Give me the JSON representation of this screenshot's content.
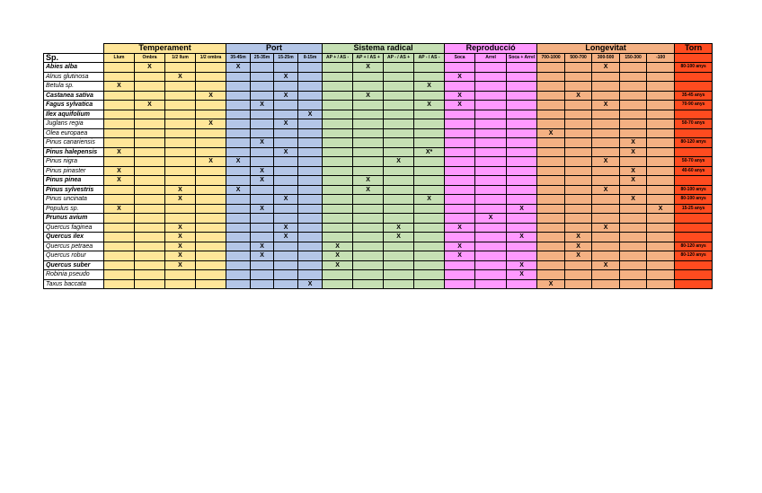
{
  "table": {
    "sp_header": "Sp.",
    "groups": [
      {
        "label": "Temperament",
        "color": "#ffe699",
        "columns": [
          "Llum",
          "Ombra",
          "1/2 llum",
          "1/2 ombra"
        ]
      },
      {
        "label": "Port",
        "color": "#b4c6e7",
        "columns": [
          "35-45m",
          "25-35m",
          "15-25m",
          "8-15m"
        ]
      },
      {
        "label": "Sistema radical",
        "color": "#c6e0b4",
        "columns": [
          "AP + / AS -",
          "AP + / AS +",
          "AP - / AS +",
          "AP - / AS -"
        ]
      },
      {
        "label": "Reproducció",
        "color": "#ff99ff",
        "columns": [
          "Soca",
          "Arrel",
          "Soca + Arrel"
        ]
      },
      {
        "label": "Longevitat",
        "color": "#f4b183",
        "columns": [
          "700-1000",
          "500-700",
          "300-500",
          "150-300",
          "-100"
        ]
      }
    ],
    "torn_header": "Torn",
    "torn_color": "#ff4b1f",
    "rows": [
      {
        "species": "Abies alba",
        "bold": true,
        "cells": [
          null,
          "X",
          null,
          null,
          "X",
          null,
          null,
          null,
          null,
          "X",
          null,
          null,
          null,
          null,
          null,
          null,
          null,
          "X",
          null,
          null
        ],
        "torn": "80-100 anys"
      },
      {
        "species": "Alnus glutinosa",
        "bold": false,
        "cells": [
          null,
          null,
          "X",
          null,
          null,
          null,
          "X",
          null,
          null,
          null,
          null,
          null,
          "X",
          null,
          null,
          null,
          null,
          null,
          null,
          null
        ],
        "torn": null
      },
      {
        "species": "Betula sp.",
        "bold": false,
        "cells": [
          "X",
          null,
          null,
          null,
          null,
          null,
          null,
          null,
          null,
          null,
          null,
          "X",
          null,
          null,
          null,
          null,
          null,
          null,
          null,
          null
        ],
        "torn": null
      },
      {
        "species": "Castanea sativa",
        "bold": true,
        "cells": [
          null,
          null,
          null,
          "X",
          null,
          null,
          "X",
          null,
          null,
          "X",
          null,
          null,
          "X",
          null,
          null,
          null,
          "X",
          null,
          null,
          null
        ],
        "torn": "35-45 anys"
      },
      {
        "species": "Fagus sylvatica",
        "bold": true,
        "cells": [
          null,
          "X",
          null,
          null,
          null,
          "X",
          null,
          null,
          null,
          null,
          null,
          "X",
          "X",
          null,
          null,
          null,
          null,
          "X",
          null,
          null
        ],
        "torn": "70-90 anys"
      },
      {
        "species": "Ilex aquifolium",
        "bold": true,
        "cells": [
          null,
          null,
          null,
          null,
          null,
          null,
          null,
          "X",
          null,
          null,
          null,
          null,
          null,
          null,
          null,
          null,
          null,
          null,
          null,
          null
        ],
        "torn": null
      },
      {
        "species": "Juglans regia",
        "bold": false,
        "cells": [
          null,
          null,
          null,
          "X",
          null,
          null,
          "X",
          null,
          null,
          null,
          null,
          null,
          null,
          null,
          null,
          null,
          null,
          null,
          null,
          null
        ],
        "torn": "50-70 anys"
      },
      {
        "species": "Olea europaea",
        "bold": false,
        "cells": [
          null,
          null,
          null,
          null,
          null,
          null,
          null,
          null,
          null,
          null,
          null,
          null,
          null,
          null,
          null,
          "X",
          null,
          null,
          null,
          null
        ],
        "torn": null
      },
      {
        "species": "Pinus canariensis",
        "bold": false,
        "cells": [
          null,
          null,
          null,
          null,
          null,
          "X",
          null,
          null,
          null,
          null,
          null,
          null,
          null,
          null,
          null,
          null,
          null,
          null,
          "X",
          null
        ],
        "torn": "80-120 anys"
      },
      {
        "species": "Pinus halepensis",
        "bold": true,
        "cells": [
          "X",
          null,
          null,
          null,
          null,
          null,
          "X",
          null,
          null,
          null,
          null,
          "X*",
          null,
          null,
          null,
          null,
          null,
          null,
          "X",
          null
        ],
        "torn": null
      },
      {
        "species": "Pinus nigra",
        "bold": false,
        "cells": [
          null,
          null,
          null,
          "X",
          "X",
          null,
          null,
          null,
          null,
          null,
          "X",
          null,
          null,
          null,
          null,
          null,
          null,
          "X",
          null,
          null
        ],
        "torn": "50-70 anys"
      },
      {
        "species": "Pinus pinaster",
        "bold": false,
        "cells": [
          "X",
          null,
          null,
          null,
          null,
          "X",
          null,
          null,
          null,
          null,
          null,
          null,
          null,
          null,
          null,
          null,
          null,
          null,
          "X",
          null
        ],
        "torn": "40-60 anys"
      },
      {
        "species": "Pinus pinea",
        "bold": true,
        "cells": [
          "X",
          null,
          null,
          null,
          null,
          "X",
          null,
          null,
          null,
          "X",
          null,
          null,
          null,
          null,
          null,
          null,
          null,
          null,
          "X",
          null
        ],
        "torn": null
      },
      {
        "species": "Pinus sylvestris",
        "bold": true,
        "cells": [
          null,
          null,
          "X",
          null,
          "X",
          null,
          null,
          null,
          null,
          "X",
          null,
          null,
          null,
          null,
          null,
          null,
          null,
          "X",
          null,
          null
        ],
        "torn": "80-100 anys"
      },
      {
        "species": "Pinus uncinata",
        "bold": false,
        "cells": [
          null,
          null,
          "X",
          null,
          null,
          null,
          "X",
          null,
          null,
          null,
          null,
          "X",
          null,
          null,
          null,
          null,
          null,
          null,
          "X",
          null
        ],
        "torn": "80-100 anys"
      },
      {
        "species": "Populus sp.",
        "bold": false,
        "cells": [
          "X",
          null,
          null,
          null,
          null,
          "X",
          null,
          null,
          null,
          null,
          null,
          null,
          null,
          null,
          "X",
          null,
          null,
          null,
          null,
          "X"
        ],
        "torn": "15-25 anys"
      },
      {
        "species": "Prunus avium",
        "bold": true,
        "cells": [
          null,
          null,
          null,
          null,
          null,
          null,
          null,
          null,
          null,
          null,
          null,
          null,
          null,
          "X",
          null,
          null,
          null,
          null,
          null,
          null
        ],
        "torn": null
      },
      {
        "species": "Quercus faginea",
        "bold": false,
        "cells": [
          null,
          null,
          "X",
          null,
          null,
          null,
          "X",
          null,
          null,
          null,
          "X",
          null,
          "X",
          null,
          null,
          null,
          null,
          "X",
          null,
          null
        ],
        "torn": null
      },
      {
        "species": "Quercus ilex",
        "bold": true,
        "cells": [
          null,
          null,
          "X",
          null,
          null,
          null,
          "X",
          null,
          null,
          null,
          "X",
          null,
          null,
          null,
          "X",
          null,
          "X",
          null,
          null,
          null
        ],
        "torn": null
      },
      {
        "species": "Quercus petraea",
        "bold": false,
        "cells": [
          null,
          null,
          "X",
          null,
          null,
          "X",
          null,
          null,
          "X",
          null,
          null,
          null,
          "X",
          null,
          null,
          null,
          "X",
          null,
          null,
          null
        ],
        "torn": "80-120 anys"
      },
      {
        "species": "Quercus robur",
        "bold": false,
        "cells": [
          null,
          null,
          "X",
          null,
          null,
          "X",
          null,
          null,
          "X",
          null,
          null,
          null,
          "X",
          null,
          null,
          null,
          "X",
          null,
          null,
          null
        ],
        "torn": "80-120 anys"
      },
      {
        "species": "Quercus suber",
        "bold": true,
        "cells": [
          null,
          null,
          "X",
          null,
          null,
          null,
          null,
          null,
          "X",
          null,
          null,
          null,
          null,
          null,
          "X",
          null,
          null,
          "X",
          null,
          null
        ],
        "torn": null
      },
      {
        "species": "Robinia pseudo",
        "bold": false,
        "cells": [
          null,
          null,
          null,
          null,
          null,
          null,
          null,
          null,
          null,
          null,
          null,
          null,
          null,
          null,
          "X",
          null,
          null,
          null,
          null,
          null
        ],
        "torn": null
      },
      {
        "species": "Taxus baccata",
        "bold": false,
        "cells": [
          null,
          null,
          null,
          null,
          null,
          null,
          null,
          "X",
          null,
          null,
          null,
          null,
          null,
          null,
          null,
          "X",
          null,
          null,
          null,
          null
        ],
        "torn": null
      }
    ]
  }
}
